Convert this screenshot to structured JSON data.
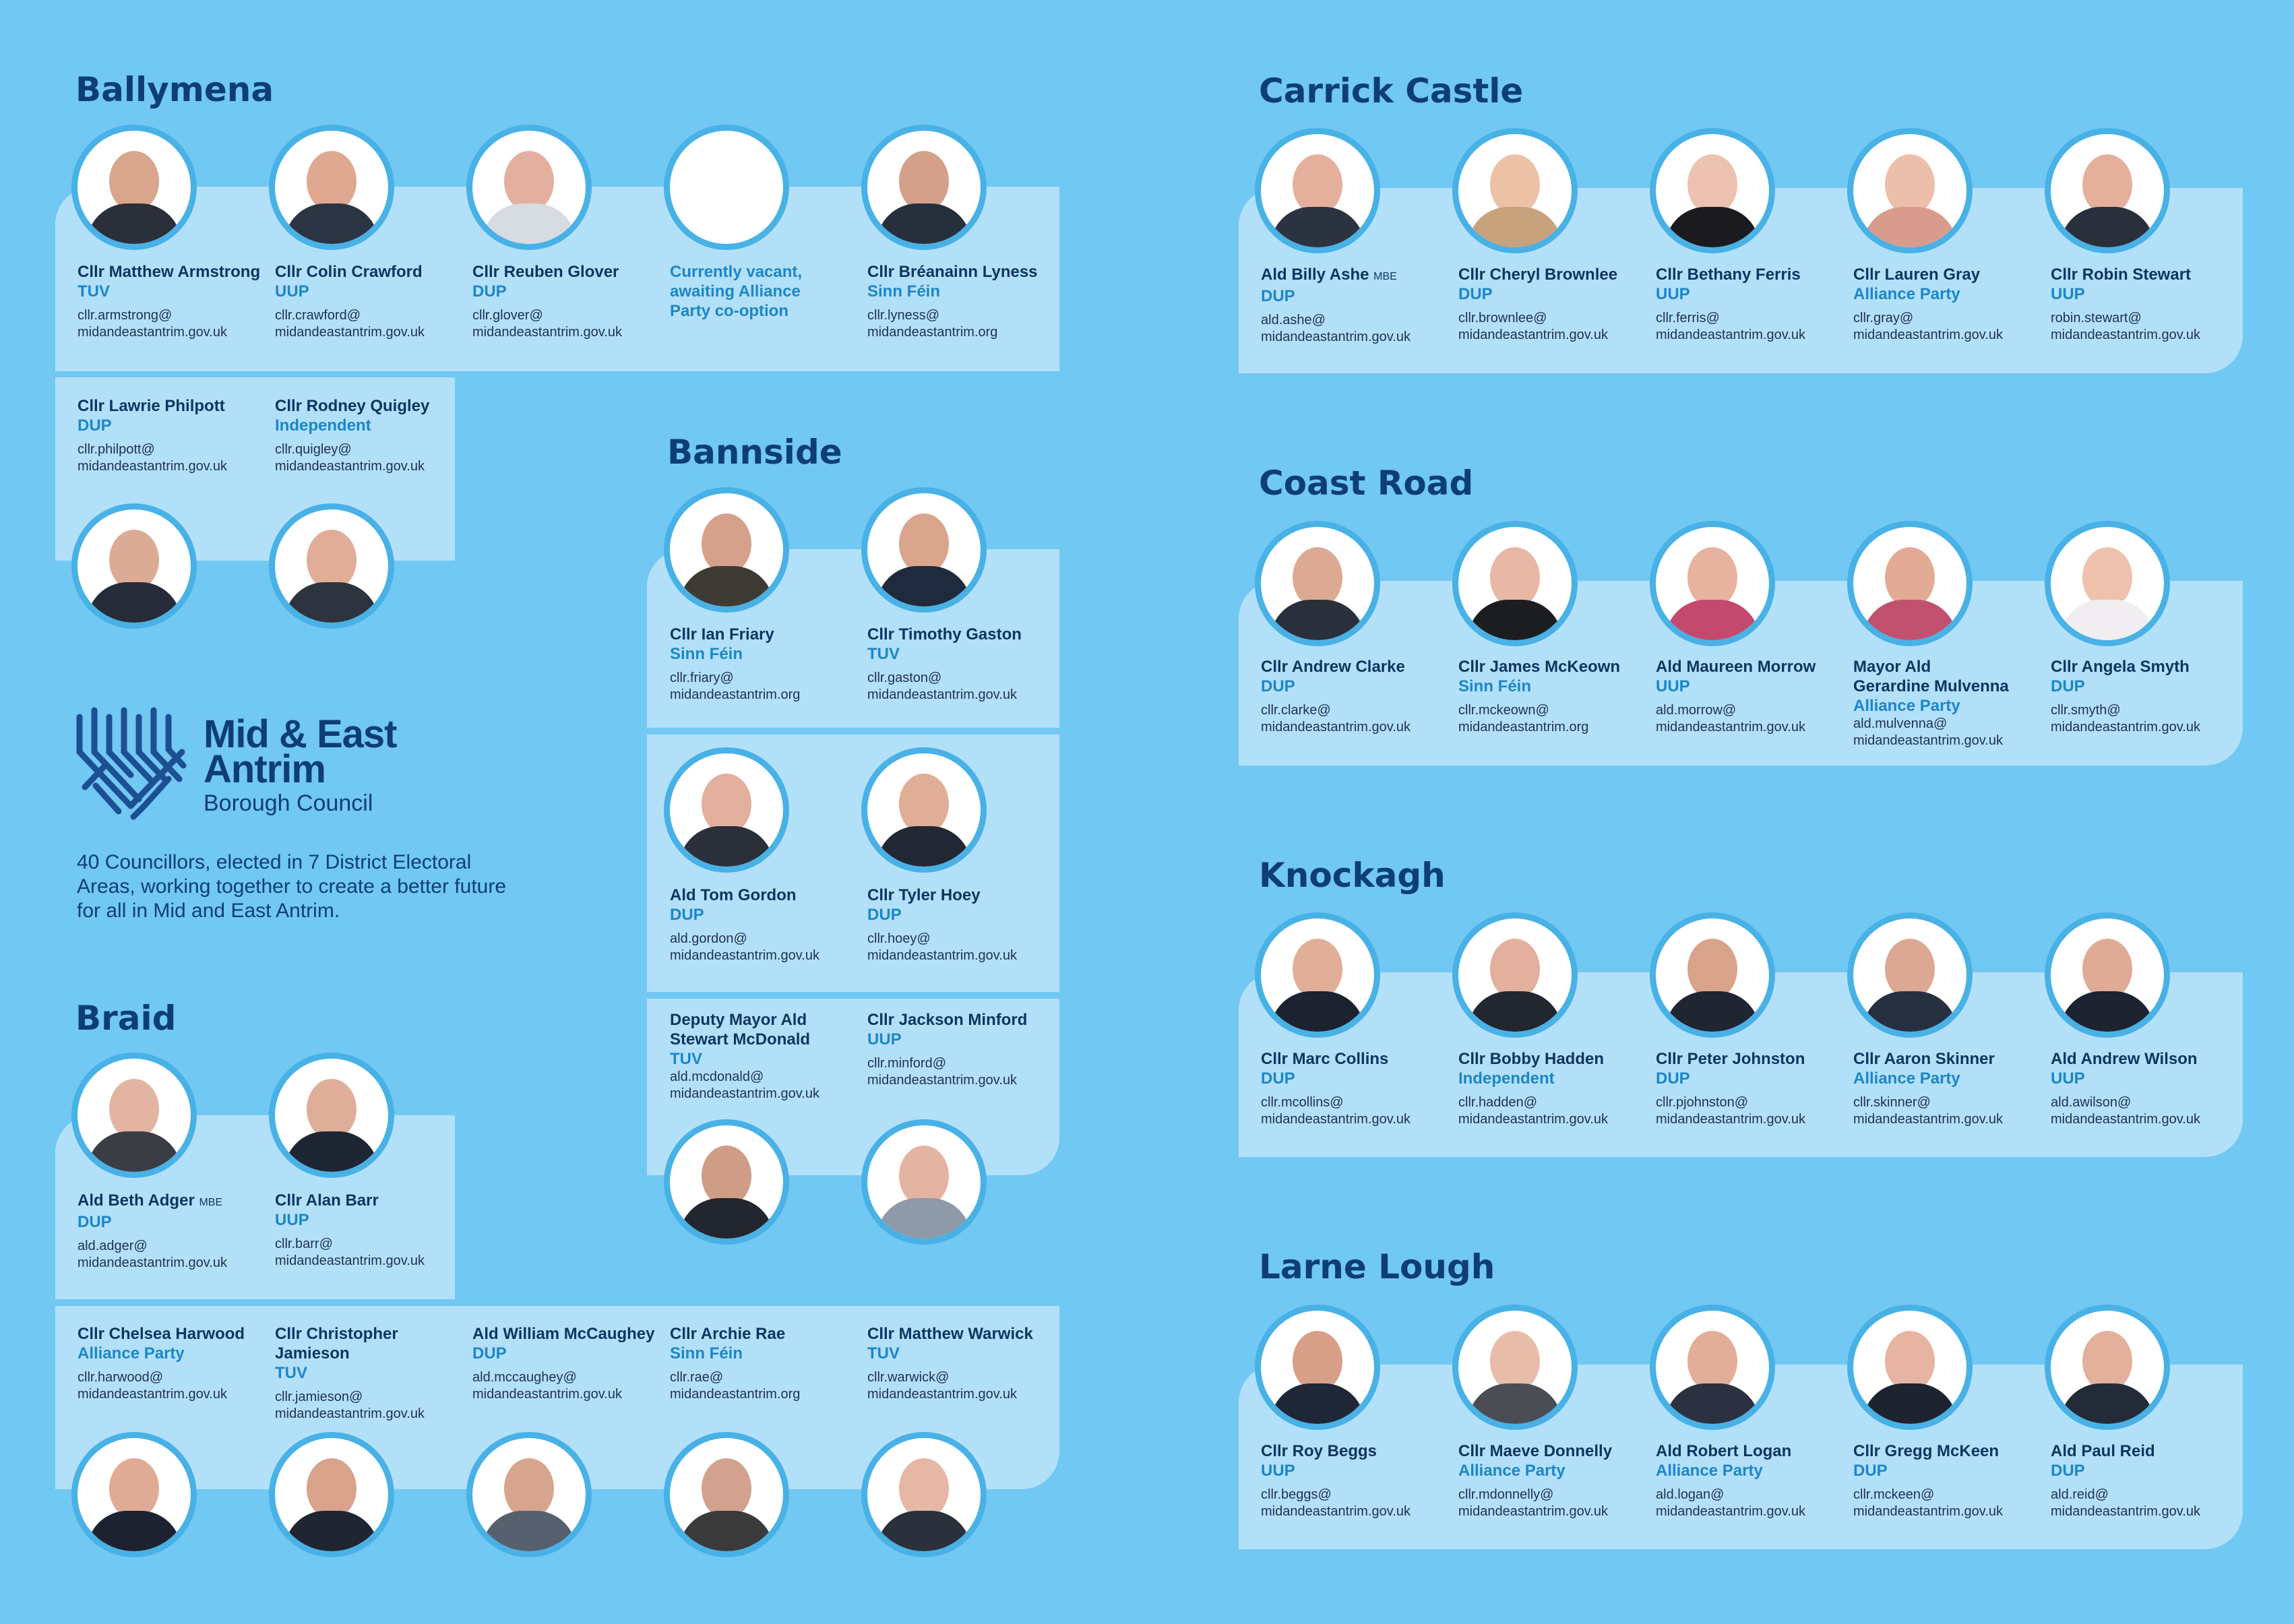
{
  "areas": {
    "ballymena": {
      "title": "Ballymena",
      "members": [
        {
          "name": "Cllr Matthew Armstrong",
          "party": "TUV",
          "email1": "cllr.armstrong@",
          "email2": "midandeastantrim.gov.uk"
        },
        {
          "name": "Cllr Colin Crawford",
          "party": "UUP",
          "email1": "cllr.crawford@",
          "email2": "midandeastantrim.gov.uk"
        },
        {
          "name": "Cllr Reuben Glover",
          "party": "DUP",
          "email1": "cllr.glover@",
          "email2": "midandeastantrim.gov.uk"
        },
        {
          "vacant_line1": "Currently vacant,",
          "vacant_line2": "awaiting Alliance",
          "vacant_line3": "Party co-option"
        },
        {
          "name": "Cllr Bréanainn Lyness",
          "party": "Sinn Féin",
          "email1": "cllr.lyness@",
          "email2": "midandeastantrim.org"
        },
        {
          "name": "Cllr Lawrie Philpott",
          "party": "DUP",
          "email1": "cllr.philpott@",
          "email2": "midandeastantrim.gov.uk"
        },
        {
          "name": "Cllr Rodney Quigley",
          "party": "Independent",
          "email1": "cllr.quigley@",
          "email2": "midandeastantrim.gov.uk"
        }
      ]
    },
    "bannside": {
      "title": "Bannside",
      "members": [
        {
          "name": "Cllr Ian Friary",
          "party": "Sinn Féin",
          "email1": "cllr.friary@",
          "email2": "midandeastantrim.org"
        },
        {
          "name": "Cllr Timothy Gaston",
          "party": "TUV",
          "email1": "cllr.gaston@",
          "email2": "midandeastantrim.gov.uk"
        },
        {
          "name": "Ald Tom Gordon",
          "party": "DUP",
          "email1": "ald.gordon@",
          "email2": "midandeastantrim.gov.uk"
        },
        {
          "name": "Cllr Tyler Hoey",
          "party": "DUP",
          "email1": "cllr.hoey@",
          "email2": "midandeastantrim.gov.uk"
        },
        {
          "name_line1": "Deputy Mayor Ald",
          "name_line2": "Stewart McDonald",
          "party": "TUV",
          "email1": "ald.mcdonald@",
          "email2": "midandeastantrim.gov.uk"
        },
        {
          "name": "Cllr Jackson Minford",
          "party": "UUP",
          "email1": "cllr.minford@",
          "email2": "midandeastantrim.gov.uk"
        }
      ]
    },
    "braid": {
      "title": "Braid",
      "members": [
        {
          "name": "Ald Beth Adger",
          "honour": "MBE",
          "party": "DUP",
          "email1": "ald.adger@",
          "email2": "midandeastantrim.gov.uk"
        },
        {
          "name": "Cllr Alan Barr",
          "party": "UUP",
          "email1": "cllr.barr@",
          "email2": "midandeastantrim.gov.uk"
        },
        {
          "name": "Cllr Chelsea Harwood",
          "party": "Alliance Party",
          "email1": "cllr.harwood@",
          "email2": "midandeastantrim.gov.uk"
        },
        {
          "name": "Cllr Christopher Jamieson",
          "party": "TUV",
          "email1": "cllr.jamieson@",
          "email2": "midandeastantrim.gov.uk"
        },
        {
          "name": "Ald William McCaughey",
          "party": "DUP",
          "email1": "ald.mccaughey@",
          "email2": "midandeastantrim.gov.uk"
        },
        {
          "name": "Cllr Archie Rae",
          "party": "Sinn Féin",
          "email1": "cllr.rae@",
          "email2": "midandeastantrim.org"
        },
        {
          "name": "Cllr Matthew Warwick",
          "party": "TUV",
          "email1": "cllr.warwick@",
          "email2": "midandeastantrim.gov.uk"
        }
      ]
    },
    "carrick": {
      "title": "Carrick Castle",
      "members": [
        {
          "name": "Ald Billy Ashe",
          "honour": "MBE",
          "party": "DUP",
          "email1": "ald.ashe@",
          "email2": "midandeastantrim.gov.uk"
        },
        {
          "name": "Cllr Cheryl Brownlee",
          "party": "DUP",
          "email1": "cllr.brownlee@",
          "email2": "midandeastantrim.gov.uk"
        },
        {
          "name": "Cllr Bethany Ferris",
          "party": "UUP",
          "email1": "cllr.ferris@",
          "email2": "midandeastantrim.gov.uk"
        },
        {
          "name": "Cllr Lauren Gray",
          "party": "Alliance Party",
          "email1": "cllr.gray@",
          "email2": "midandeastantrim.gov.uk"
        },
        {
          "name": "Cllr Robin Stewart",
          "party": "UUP",
          "email1": "robin.stewart@",
          "email2": "midandeastantrim.gov.uk"
        }
      ]
    },
    "coast": {
      "title": "Coast Road",
      "members": [
        {
          "name": "Cllr Andrew Clarke",
          "party": "DUP",
          "email1": "cllr.clarke@",
          "email2": "midandeastantrim.gov.uk"
        },
        {
          "name": "Cllr James McKeown",
          "party": "Sinn Féin",
          "email1": "cllr.mckeown@",
          "email2": "midandeastantrim.org"
        },
        {
          "name": "Ald Maureen Morrow",
          "party": "UUP",
          "email1": "ald.morrow@",
          "email2": "midandeastantrim.gov.uk"
        },
        {
          "name_line1": "Mayor Ald",
          "name_line2": "Gerardine Mulvenna",
          "party": "Alliance Party",
          "email1": "ald.mulvenna@",
          "email2": "midandeastantrim.gov.uk"
        },
        {
          "name": "Cllr Angela Smyth",
          "party": "DUP",
          "email1": "cllr.smyth@",
          "email2": "midandeastantrim.gov.uk"
        }
      ]
    },
    "knockagh": {
      "title": "Knockagh",
      "members": [
        {
          "name": "Cllr Marc Collins",
          "party": "DUP",
          "email1": "cllr.mcollins@",
          "email2": "midandeastantrim.gov.uk"
        },
        {
          "name": "Cllr Bobby Hadden",
          "party": "Independent",
          "email1": "cllr.hadden@",
          "email2": "midandeastantrim.gov.uk"
        },
        {
          "name": "Cllr Peter Johnston",
          "party": "DUP",
          "email1": "cllr.pjohnston@",
          "email2": "midandeastantrim.gov.uk"
        },
        {
          "name": "Cllr Aaron Skinner",
          "party": "Alliance Party",
          "email1": "cllr.skinner@",
          "email2": "midandeastantrim.gov.uk"
        },
        {
          "name": "Ald Andrew Wilson",
          "party": "UUP",
          "email1": "ald.awilson@",
          "email2": "midandeastantrim.gov.uk"
        }
      ]
    },
    "larne": {
      "title": "Larne Lough",
      "members": [
        {
          "name": "Cllr Roy Beggs",
          "party": "UUP",
          "email1": "cllr.beggs@",
          "email2": "midandeastantrim.gov.uk"
        },
        {
          "name": "Cllr Maeve Donnelly",
          "party": "Alliance Party",
          "email1": "cllr.mdonnelly@",
          "email2": "midandeastantrim.gov.uk"
        },
        {
          "name": "Ald Robert Logan",
          "party": "Alliance Party",
          "email1": "ald.logan@",
          "email2": "midandeastantrim.gov.uk"
        },
        {
          "name": "Cllr Gregg McKeen",
          "party": "DUP",
          "email1": "cllr.mckeen@",
          "email2": "midandeastantrim.gov.uk"
        },
        {
          "name": "Ald Paul Reid",
          "party": "DUP",
          "email1": "ald.reid@",
          "email2": "midandeastantrim.gov.uk"
        }
      ]
    }
  },
  "logo": {
    "line1": "Mid & East",
    "line2": "Antrim",
    "line3": "Borough Council",
    "icon": "council-logo-icon"
  },
  "intro": "40 Councillors, elected in 7 District Electoral Areas, working together to create a better future for all in Mid and East Antrim.",
  "colors": {
    "background": "#71c8f2",
    "panel": "#b3e0f9",
    "ring": "#48b1e6",
    "heading": "#0e3d78",
    "party": "#1b86c9"
  }
}
